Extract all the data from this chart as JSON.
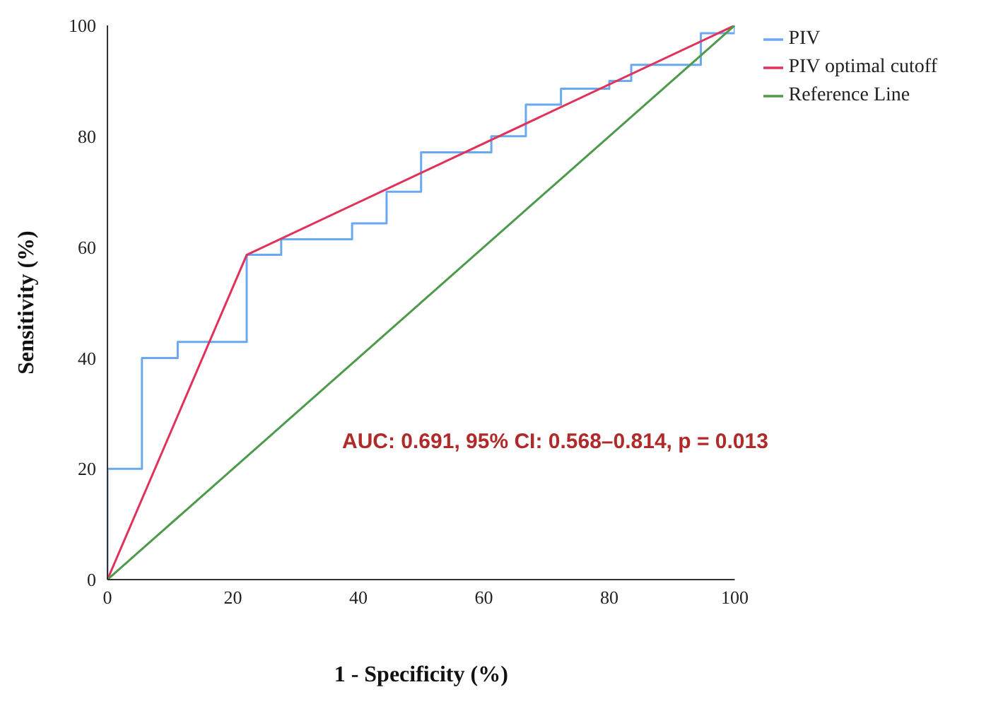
{
  "chart_data": {
    "type": "line",
    "xlabel": "1 - Specificity (%)",
    "ylabel": "Sensitivity (%)",
    "xlim": [
      0,
      100
    ],
    "ylim": [
      0,
      100
    ],
    "xticks": [
      0,
      20,
      40,
      60,
      80,
      100
    ],
    "yticks": [
      0,
      20,
      40,
      60,
      80,
      100
    ],
    "grid": false,
    "legend": "top right",
    "marker": "none",
    "series": [
      {
        "name": "PIV",
        "type": "step",
        "color": "#6aa8f0",
        "x": [
          0,
          0,
          5.5,
          11.2,
          22.2,
          27.7,
          39,
          44.5,
          50,
          61.2,
          66.7,
          72.3,
          80,
          83.5,
          94.6,
          100
        ],
        "values": [
          0,
          20,
          40,
          42.9,
          58.6,
          61.4,
          64.3,
          70,
          77.1,
          80,
          85.7,
          88.6,
          90,
          92.9,
          98.6,
          100
        ]
      },
      {
        "name": "PIV optimal cutoff",
        "type": "line",
        "color": "#e0325a",
        "x": [
          0,
          22.2,
          100
        ],
        "values": [
          0,
          58.6,
          100
        ]
      },
      {
        "name": "Reference Line",
        "type": "line",
        "color": "#4c9a4a",
        "x": [
          0,
          100
        ],
        "values": [
          0,
          100
        ]
      }
    ],
    "annotations": [
      "AUC: 0.691, 95% CI: 0.568–0.814, p = 0.013"
    ]
  }
}
